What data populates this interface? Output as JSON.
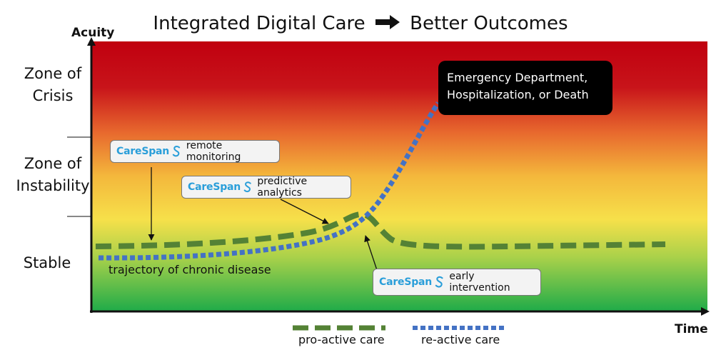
{
  "title": {
    "left": "Integrated Digital Care",
    "right": "Better Outcomes",
    "arrow_icon": "right-arrow-icon"
  },
  "axes": {
    "y_label": "Acuity",
    "x_label": "Time"
  },
  "zones": [
    {
      "label": "Zone of Crisis"
    },
    {
      "label": "Zone of Instability"
    },
    {
      "label": "Stable"
    }
  ],
  "brand": {
    "name": "CareSpan",
    "color": "#2a9ed9"
  },
  "callouts": {
    "remote_monitoring": "remote monitoring",
    "predictive_analytics": "predictive analytics",
    "early_intervention": "early intervention"
  },
  "outcome_box": "Emergency Department, Hospitalization, or Death",
  "trajectory_label": "trajectory of chronic disease",
  "legend": {
    "proactive": "pro-active care",
    "reactive": "re-active care"
  },
  "colors": {
    "crisis": "#c0000f",
    "instability": "#f6d53a",
    "stable": "#22ad4a",
    "proactive_line": "#548235",
    "reactive_line": "#4472c4"
  }
}
